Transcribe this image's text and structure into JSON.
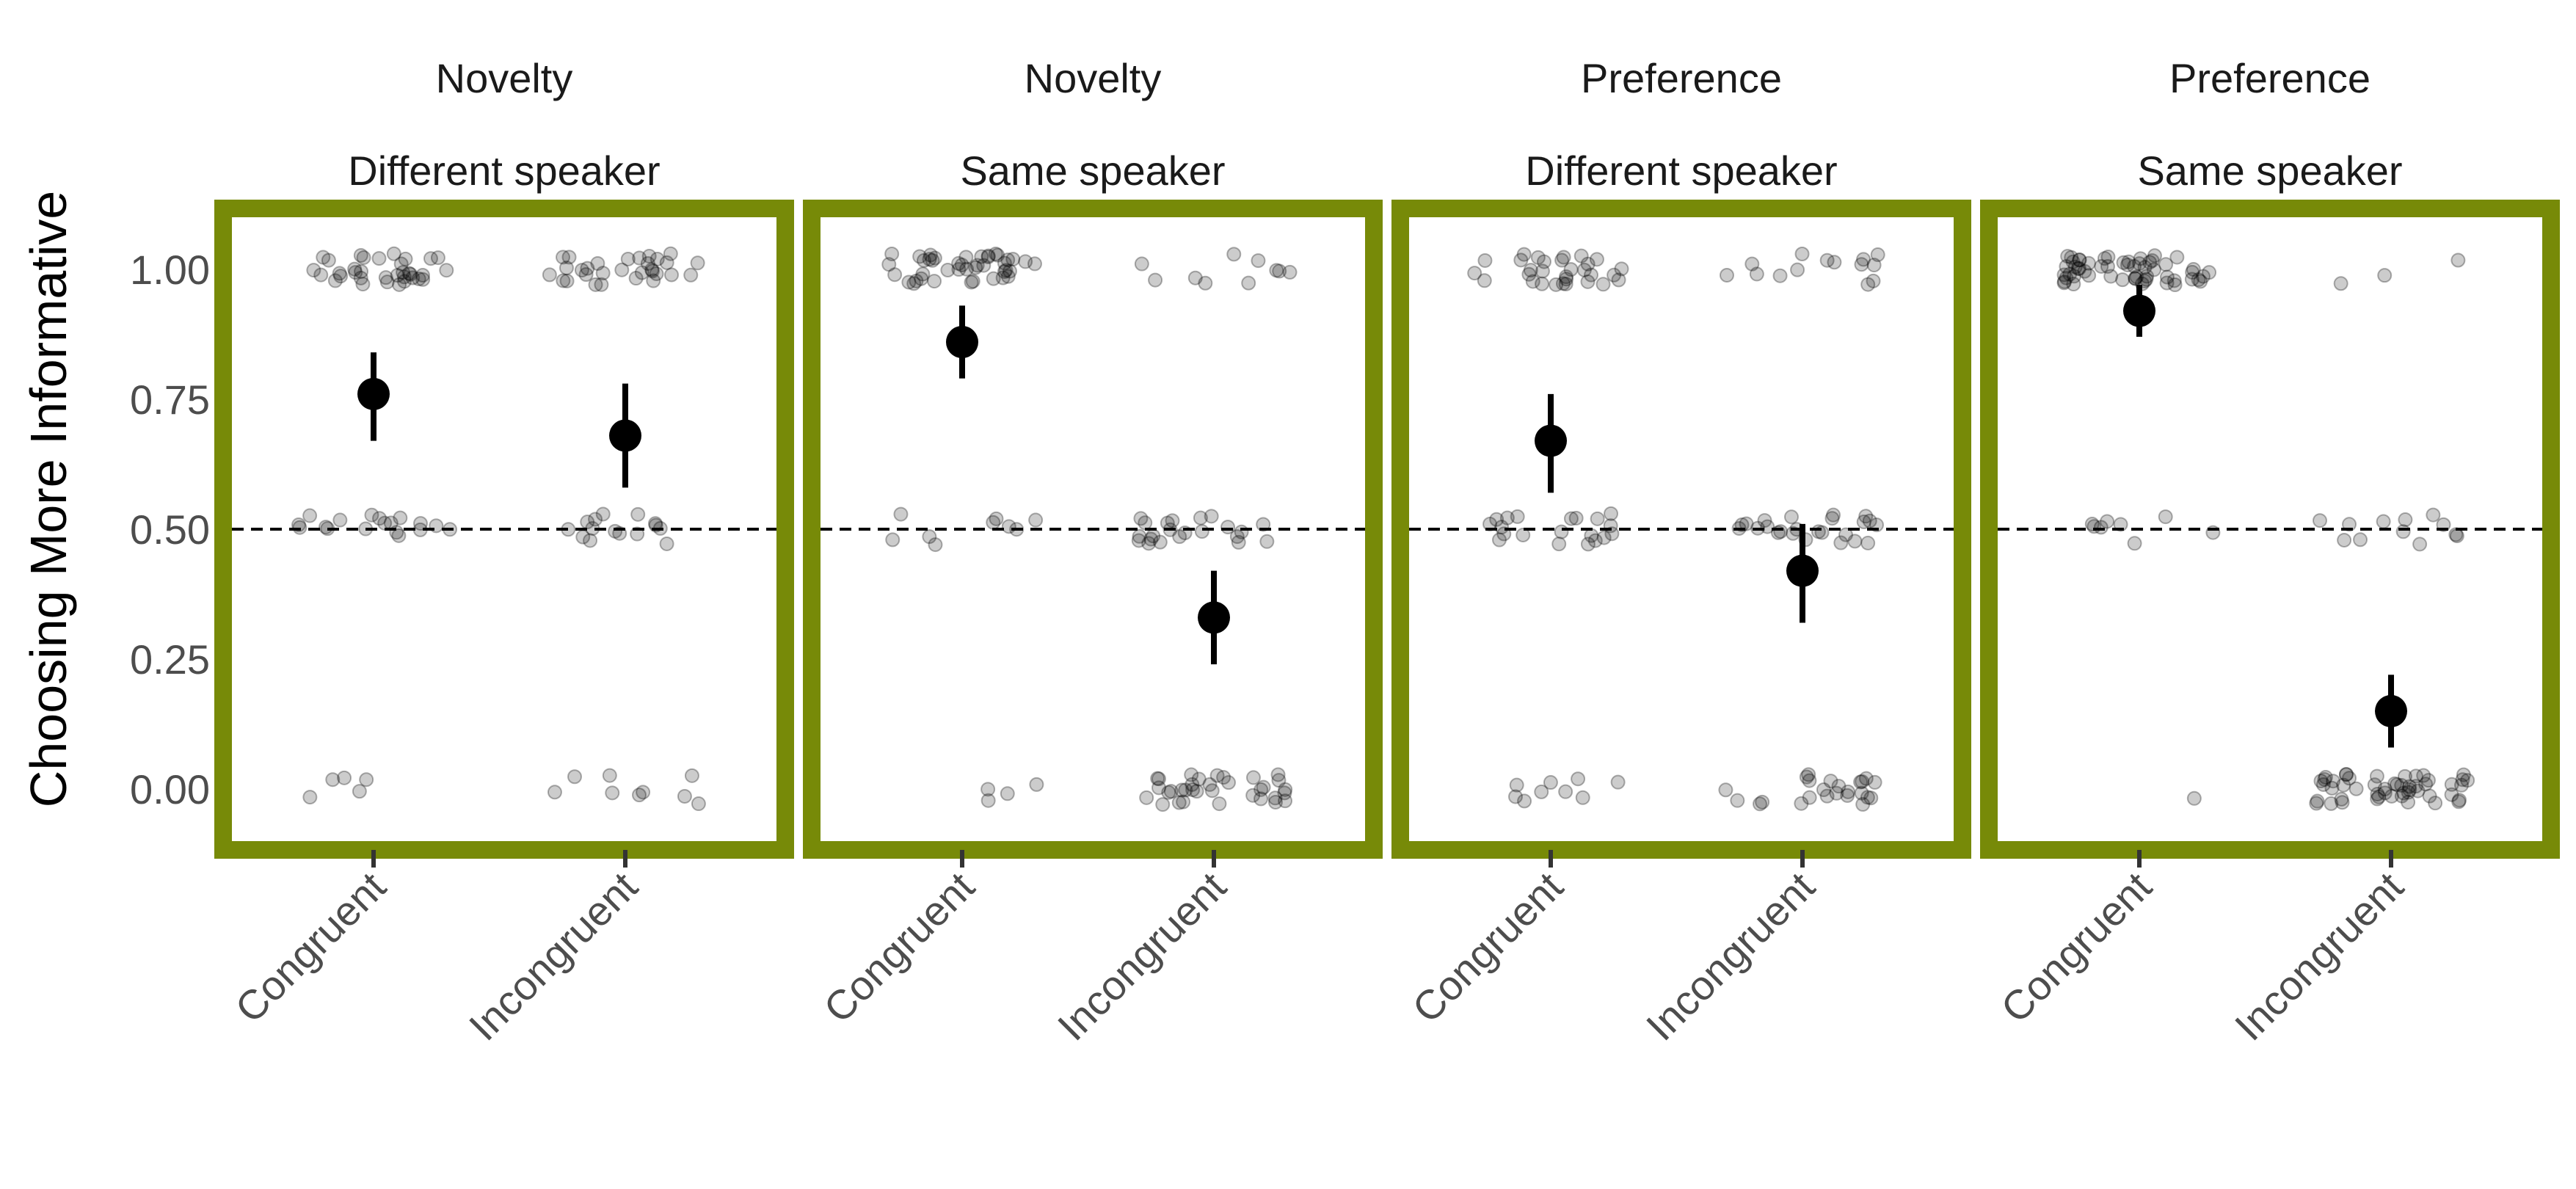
{
  "chart_data": {
    "type": "scatter",
    "ylabel": "Choosing More Informative",
    "ylim": [
      -0.1,
      1.1
    ],
    "yticks": [
      0.0,
      0.25,
      0.5,
      0.75,
      1.0
    ],
    "ytick_labels": [
      "0.00",
      "0.25",
      "0.50",
      "0.75",
      "1.00"
    ],
    "categories": [
      "Congruent",
      "Incongruent"
    ],
    "reference_line": 0.5,
    "colors": {
      "panel_border": "#778a08",
      "mean_point": "#000000",
      "raw_point": "#000000",
      "reference_line": "#000000"
    },
    "panels": [
      {
        "title_line1": "Novelty",
        "title_line2": "Different speaker",
        "means": [
          {
            "category": "Congruent",
            "mean": 0.76,
            "ci": [
              0.67,
              0.84
            ]
          },
          {
            "category": "Incongruent",
            "mean": 0.68,
            "ci": [
              0.58,
              0.78
            ]
          }
        ],
        "raw_points": [
          {
            "category": "Congruent",
            "y": 1.0,
            "n": 34
          },
          {
            "category": "Congruent",
            "y": 0.5,
            "n": 18
          },
          {
            "category": "Congruent",
            "y": 0.0,
            "n": 5
          },
          {
            "category": "Incongruent",
            "y": 1.0,
            "n": 30
          },
          {
            "category": "Incongruent",
            "y": 0.5,
            "n": 15
          },
          {
            "category": "Incongruent",
            "y": 0.0,
            "n": 9
          }
        ]
      },
      {
        "title_line1": "Novelty",
        "title_line2": "Same speaker",
        "means": [
          {
            "category": "Congruent",
            "mean": 0.86,
            "ci": [
              0.79,
              0.93
            ]
          },
          {
            "category": "Incongruent",
            "mean": 0.33,
            "ci": [
              0.24,
              0.42
            ]
          }
        ],
        "raw_points": [
          {
            "category": "Congruent",
            "y": 1.0,
            "n": 42
          },
          {
            "category": "Congruent",
            "y": 0.5,
            "n": 9
          },
          {
            "category": "Congruent",
            "y": 0.0,
            "n": 4
          },
          {
            "category": "Incongruent",
            "y": 1.0,
            "n": 10
          },
          {
            "category": "Incongruent",
            "y": 0.5,
            "n": 22
          },
          {
            "category": "Incongruent",
            "y": 0.0,
            "n": 34
          }
        ]
      },
      {
        "title_line1": "Preference",
        "title_line2": "Different speaker",
        "means": [
          {
            "category": "Congruent",
            "mean": 0.67,
            "ci": [
              0.57,
              0.76
            ]
          },
          {
            "category": "Incongruent",
            "mean": 0.42,
            "ci": [
              0.32,
              0.51
            ]
          }
        ],
        "raw_points": [
          {
            "category": "Congruent",
            "y": 1.0,
            "n": 30
          },
          {
            "category": "Congruent",
            "y": 0.5,
            "n": 20
          },
          {
            "category": "Congruent",
            "y": 0.0,
            "n": 9
          },
          {
            "category": "Incongruent",
            "y": 1.0,
            "n": 14
          },
          {
            "category": "Incongruent",
            "y": 0.5,
            "n": 24
          },
          {
            "category": "Incongruent",
            "y": 0.0,
            "n": 24
          }
        ]
      },
      {
        "title_line1": "Preference",
        "title_line2": "Same speaker",
        "means": [
          {
            "category": "Congruent",
            "mean": 0.92,
            "ci": [
              0.87,
              0.97
            ]
          },
          {
            "category": "Incongruent",
            "mean": 0.15,
            "ci": [
              0.08,
              0.22
            ]
          }
        ],
        "raw_points": [
          {
            "category": "Congruent",
            "y": 1.0,
            "n": 56
          },
          {
            "category": "Congruent",
            "y": 0.5,
            "n": 8
          },
          {
            "category": "Congruent",
            "y": 0.0,
            "n": 1
          },
          {
            "category": "Incongruent",
            "y": 1.0,
            "n": 3
          },
          {
            "category": "Incongruent",
            "y": 0.5,
            "n": 12
          },
          {
            "category": "Incongruent",
            "y": 0.0,
            "n": 50
          }
        ]
      }
    ]
  }
}
